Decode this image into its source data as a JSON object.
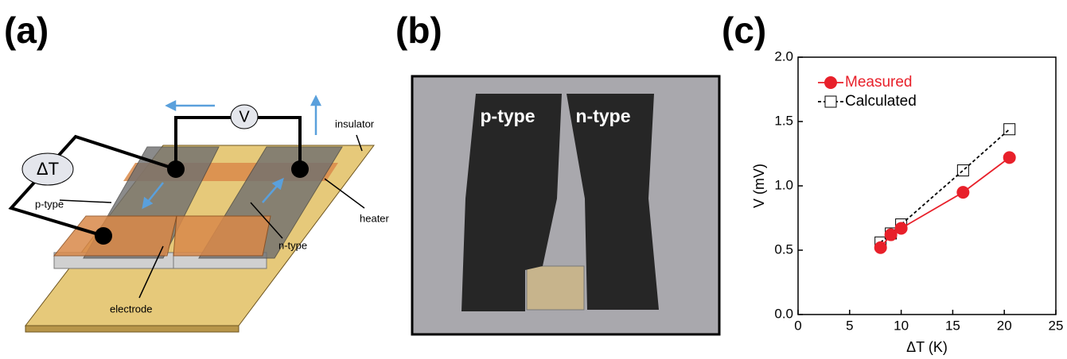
{
  "panels": {
    "a": "(a)",
    "b": "(b)",
    "c": "(c)"
  },
  "diagram": {
    "voltmeter": "V",
    "delta_t": "ΔT",
    "insulator": "insulator",
    "heater": "heater",
    "p_type": "p-type",
    "n_type": "n-type",
    "electrode": "electrode"
  },
  "photo": {
    "p_type": "p-type",
    "n_type": "n-type"
  },
  "chart_data": {
    "type": "line",
    "x_label": "ΔT (K)",
    "y_label": "V (mV)",
    "xlim": [
      0,
      25
    ],
    "xticks": [
      0,
      5,
      10,
      15,
      20,
      25
    ],
    "ylim": [
      0,
      2
    ],
    "yticks": [
      {
        "value": 0,
        "label": "0.0"
      },
      0.5,
      {
        "value": 1,
        "label": "1.0"
      },
      1.5,
      {
        "value": 2,
        "label": "2.0"
      }
    ],
    "legend": "upper-left",
    "series": [
      {
        "name": "Measured",
        "color": "#e8202a",
        "marker": "circle",
        "dashed": false,
        "x": [
          8,
          9,
          10,
          16,
          20.5
        ],
        "values": [
          0.52,
          0.62,
          0.67,
          0.95,
          1.22
        ]
      },
      {
        "name": "Calculated",
        "color": "#000000",
        "marker": "square",
        "dashed": true,
        "x": [
          8,
          9,
          10,
          16,
          20.5
        ],
        "values": [
          0.56,
          0.63,
          0.7,
          1.12,
          1.44
        ]
      }
    ]
  }
}
